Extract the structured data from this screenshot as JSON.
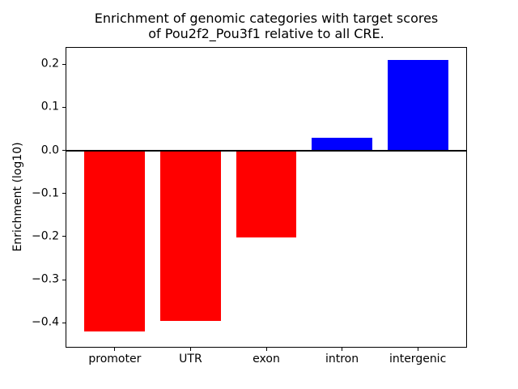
{
  "figure": {
    "background_color": "#ffffff",
    "title_line1": "Enrichment of genomic categories with target scores",
    "title_line2": "of Pou2f2_Pou3f1 relative to all CRE."
  },
  "chart_data": {
    "type": "bar",
    "title": "Enrichment of genomic categories with target scores of Pou2f2_Pou3f1 relative to all CRE.",
    "xlabel": "",
    "ylabel": "Enrichment (log10)",
    "categories": [
      "promoter",
      "UTR",
      "exon",
      "intron",
      "intergenic"
    ],
    "values": [
      -0.42,
      -0.395,
      -0.203,
      0.029,
      0.209
    ],
    "bar_colors": [
      "#ff0000",
      "#ff0000",
      "#ff0000",
      "#0000ff",
      "#0000ff"
    ],
    "negative_color": "#ff0000",
    "positive_color": "#0000ff",
    "ylim": [
      -0.456,
      0.238
    ],
    "yticks": [
      0.2,
      0.1,
      0.0,
      -0.1,
      -0.2,
      -0.3,
      -0.4
    ],
    "ytick_labels": [
      "0.2",
      "0.1",
      "0.0",
      "−0.1",
      "−0.2",
      "−0.3",
      "−0.4"
    ],
    "bar_width_fraction": 0.8,
    "x_margin": 0.64,
    "grid": false,
    "legend_position": "none",
    "zero_line": true,
    "axis_color": "#000000"
  }
}
